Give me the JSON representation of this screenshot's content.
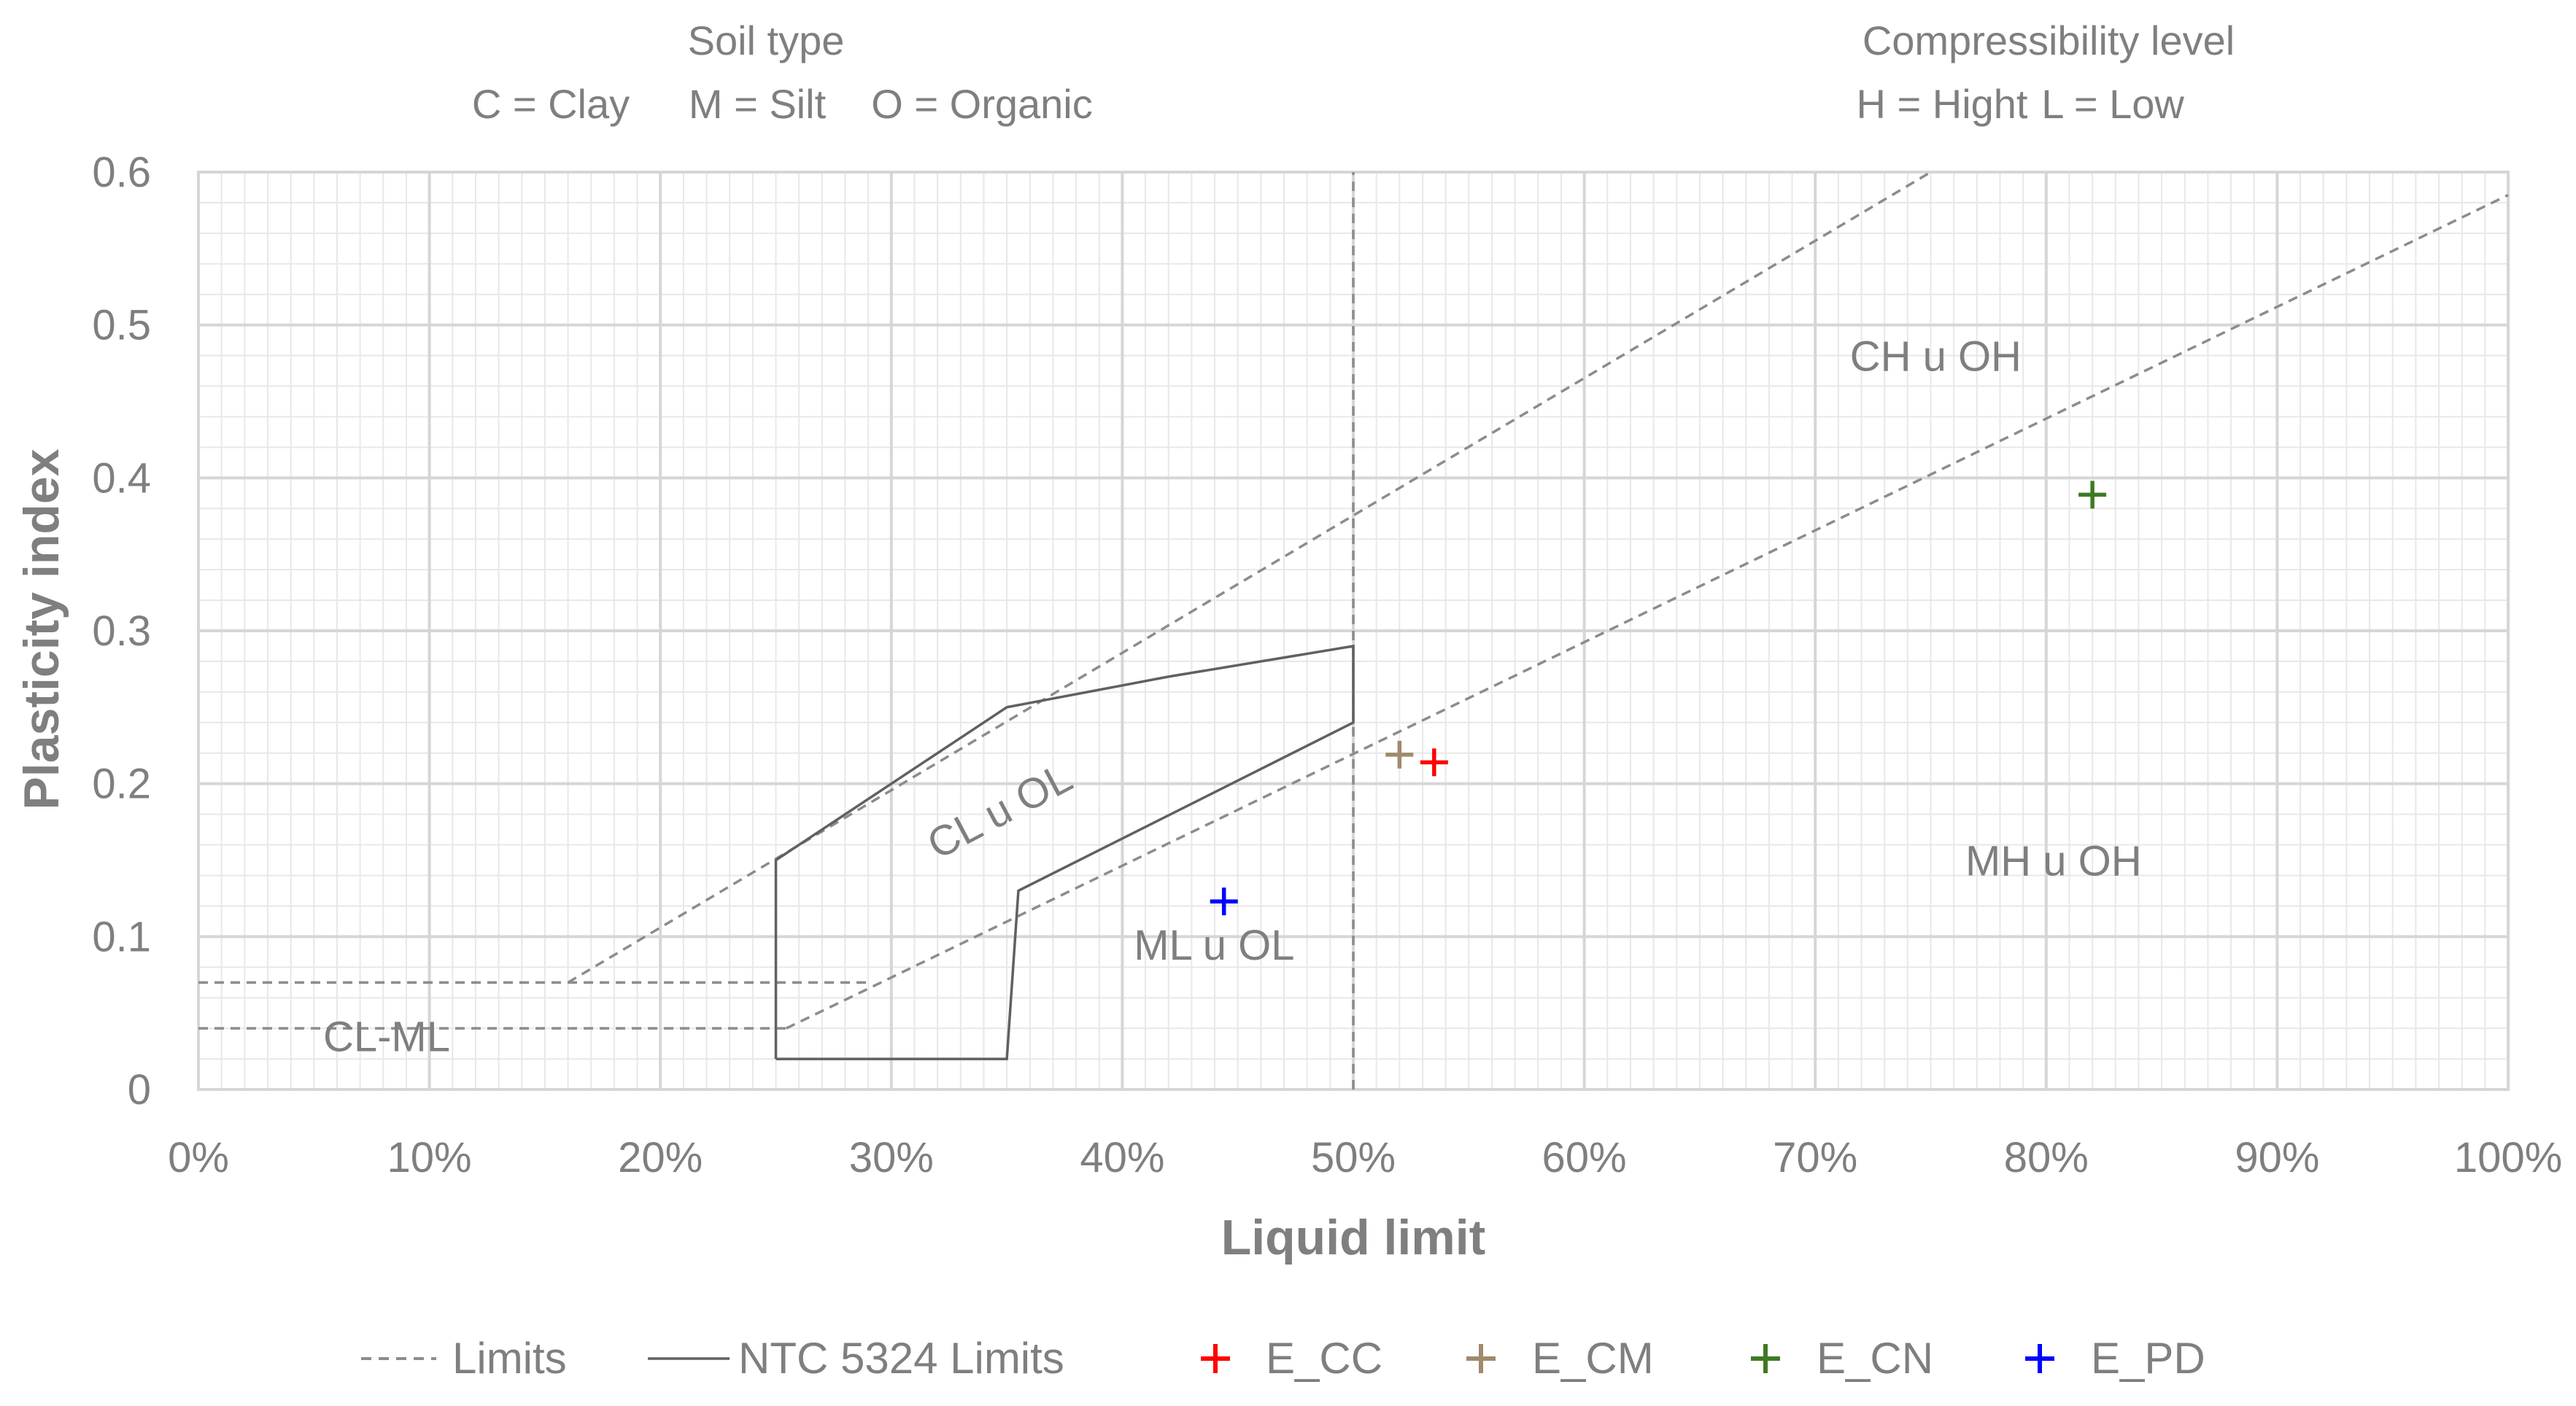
{
  "chart_data": {
    "type": "scatter",
    "title": "",
    "xlabel": "Liquid limit",
    "ylabel": "Plasticity index",
    "xlim": [
      0,
      1
    ],
    "ylim": [
      0,
      0.6
    ],
    "x_ticks": [
      "0%",
      "10%",
      "20%",
      "30%",
      "40%",
      "50%",
      "60%",
      "70%",
      "80%",
      "90%",
      "100%"
    ],
    "y_ticks": [
      "0",
      "0.1",
      "0.2",
      "0.3",
      "0.4",
      "0.5",
      "0.6"
    ],
    "grid": true,
    "legend_position": "bottom",
    "header": {
      "soil_title": "Soil type",
      "soil_items": [
        "C = Clay",
        "M = Silt",
        "O = Organic"
      ],
      "compress_title": "Compressibility level",
      "compress_items": [
        "H = Hight",
        "L = Low"
      ]
    },
    "regions": [
      {
        "label": "CH u OH",
        "x": 0.715,
        "y": 0.47
      },
      {
        "label": "MH u OH",
        "x": 0.765,
        "y": 0.14
      },
      {
        "label": "CL u OL",
        "x": 0.32,
        "y": 0.15,
        "rotate": -28
      },
      {
        "label": "ML u OL",
        "x": 0.405,
        "y": 0.085
      },
      {
        "label": "CL-ML",
        "x": 0.054,
        "y": 0.025
      }
    ],
    "limit_lines": {
      "name": "Limits",
      "color": "#8c8c8c",
      "lines": [
        {
          "x": [
            0.16,
            0.75
          ],
          "y": [
            0.07,
            0.6
          ]
        },
        {
          "x": [
            0.2545,
            1.0
          ],
          "y": [
            0.04,
            0.585
          ]
        },
        {
          "x": [
            0.0,
            0.2545
          ],
          "y": [
            0.04,
            0.04
          ]
        },
        {
          "x": [
            0.0,
            0.29
          ],
          "y": [
            0.07,
            0.07
          ]
        },
        {
          "x": [
            0.5,
            0.5
          ],
          "y": [
            0.0,
            0.6
          ]
        }
      ]
    },
    "ntc_limits": {
      "name": "NTC 5324 Limits",
      "color": "#606060",
      "x": [
        0.25,
        0.25,
        0.35,
        0.35,
        0.42,
        0.5,
        0.5,
        0.355,
        0.35,
        0.25
      ],
      "y": [
        0.02,
        0.15,
        0.25,
        0.25,
        0.27,
        0.29,
        0.24,
        0.13,
        0.02,
        0.02
      ]
    },
    "series": [
      {
        "name": "E_CC",
        "color": "#ff0000",
        "x": [
          0.535
        ],
        "y": [
          0.214
        ]
      },
      {
        "name": "E_CM",
        "color": "#a08a6b",
        "x": [
          0.52
        ],
        "y": [
          0.219
        ]
      },
      {
        "name": "E_CN",
        "color": "#3f7a24",
        "x": [
          0.82
        ],
        "y": [
          0.389
        ]
      },
      {
        "name": "E_PD",
        "color": "#0000ff",
        "x": [
          0.444
        ],
        "y": [
          0.123
        ]
      }
    ]
  }
}
